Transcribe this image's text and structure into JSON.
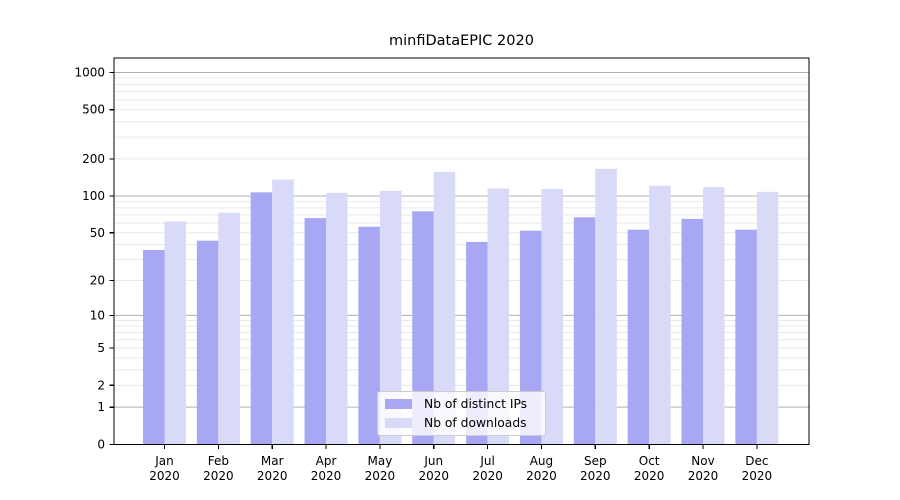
{
  "chart_data": {
    "type": "bar",
    "title": "minfiDataEPIC 2020",
    "xlabel": "",
    "ylabel": "",
    "categories": [
      "Jan 2020",
      "Feb 2020",
      "Mar 2020",
      "Apr 2020",
      "May 2020",
      "Jun 2020",
      "Jul 2020",
      "Aug 2020",
      "Sep 2020",
      "Oct 2020",
      "Nov 2020",
      "Dec 2020"
    ],
    "series": [
      {
        "name": "Nb of distinct IPs",
        "color": "#a7a7f3",
        "values": [
          36,
          43,
          107,
          66,
          56,
          75,
          42,
          52,
          67,
          53,
          65,
          53
        ]
      },
      {
        "name": "Nb of downloads",
        "color": "#d9d9f8",
        "values": [
          62,
          73,
          136,
          106,
          110,
          157,
          115,
          114,
          166,
          121,
          118,
          108
        ]
      }
    ],
    "y_scale": "log1p",
    "ylim": [
      0,
      1300
    ],
    "y_tick_labels": [
      "0",
      "1",
      "2",
      "5",
      "10",
      "20",
      "50",
      "100",
      "200",
      "500",
      "1000"
    ],
    "y_tick_values": [
      0,
      1,
      2,
      5,
      10,
      20,
      50,
      100,
      200,
      500,
      1000
    ],
    "grid": "horizontal major+minor",
    "legend_position": "lower center",
    "colors": {
      "grid_major": "#b0b0b0",
      "grid_minor": "#e9e9e9",
      "axis_frame": "#000000",
      "tick_text": "#000000",
      "background": "#ffffff"
    }
  }
}
